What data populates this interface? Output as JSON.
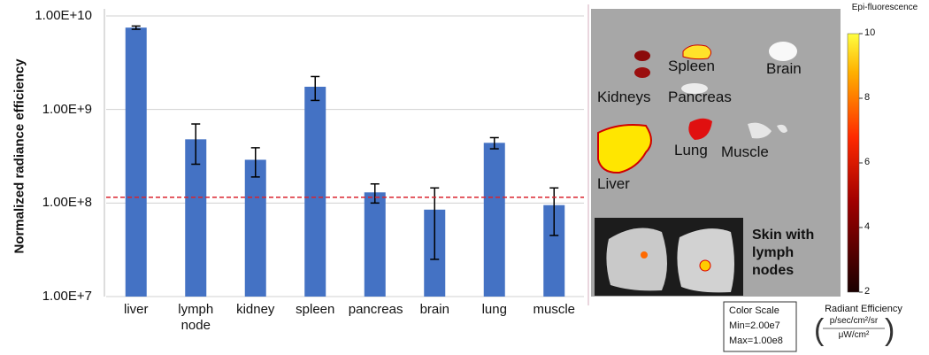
{
  "chart_data": {
    "type": "bar",
    "y_label": "Normalized radiance efficiency",
    "categories": [
      "liver",
      "lymph node",
      "kidney",
      "spleen",
      "pancreas",
      "brain",
      "lung",
      "muscle"
    ],
    "values": [
      7500000000,
      480000000,
      290000000,
      1750000000,
      130000000,
      85000000,
      440000000,
      95000000
    ],
    "errors": [
      300000000,
      220000000,
      100000000,
      500000000,
      30000000,
      60000000,
      60000000,
      50000000
    ],
    "color": "#4472c4",
    "log_scale": true,
    "ylim": [
      10000000,
      10000000000
    ],
    "yticks": [
      {
        "value": 10000000,
        "label": "1.00E+7"
      },
      {
        "value": 100000000,
        "label": "1.00E+8"
      },
      {
        "value": 1000000000,
        "label": "1.00E+9"
      },
      {
        "value": 10000000000,
        "label": "1.00E+10"
      }
    ],
    "grid": true,
    "ref_line": {
      "value": 115000000,
      "color": "#d9232e"
    }
  },
  "image_panel": {
    "organ_labels": [
      "Kidneys",
      "Spleen",
      "Brain",
      "Pancreas",
      "Lung",
      "Muscle",
      "Liver"
    ],
    "inset_label": "Skin with lymph nodes",
    "colorbar": {
      "title": "Epi-fluorescence",
      "lim": [
        2,
        10
      ],
      "ticks": [
        10,
        8,
        6,
        4,
        2
      ]
    },
    "units": {
      "title": "Radiant Efficiency",
      "numerator": "p/sec/cm²/sr",
      "denominator": "μW/cm²"
    },
    "color_scale": {
      "title": "Color Scale",
      "min": "Min=2.00e7",
      "max": "Max=1.00e8"
    }
  }
}
